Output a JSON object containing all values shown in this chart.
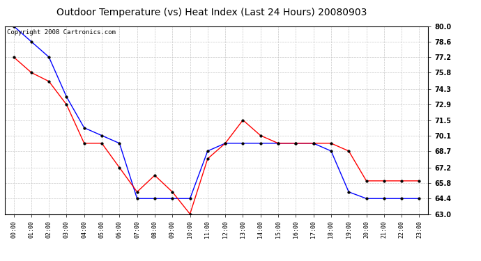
{
  "title": "Outdoor Temperature (vs) Heat Index (Last 24 Hours) 20080903",
  "copyright_text": "Copyright 2008 Cartronics.com",
  "x_labels": [
    "00:00",
    "01:00",
    "02:00",
    "03:00",
    "04:00",
    "05:00",
    "06:00",
    "07:00",
    "08:00",
    "09:00",
    "10:00",
    "11:00",
    "12:00",
    "13:00",
    "14:00",
    "15:00",
    "16:00",
    "17:00",
    "18:00",
    "19:00",
    "20:00",
    "21:00",
    "22:00",
    "23:00"
  ],
  "blue_data": [
    80.0,
    78.6,
    77.2,
    73.6,
    70.8,
    70.1,
    69.4,
    64.4,
    64.4,
    64.4,
    64.4,
    68.7,
    69.4,
    69.4,
    69.4,
    69.4,
    69.4,
    69.4,
    68.7,
    65.0,
    64.4,
    64.4,
    64.4,
    64.4
  ],
  "red_data": [
    77.2,
    75.8,
    75.0,
    72.9,
    69.4,
    69.4,
    67.2,
    65.0,
    66.5,
    65.0,
    63.0,
    68.0,
    69.4,
    71.5,
    70.1,
    69.4,
    69.4,
    69.4,
    69.4,
    68.7,
    66.0,
    66.0,
    66.0,
    66.0
  ],
  "y_ticks": [
    63.0,
    64.4,
    65.8,
    67.2,
    68.7,
    70.1,
    71.5,
    72.9,
    74.3,
    75.8,
    77.2,
    78.6,
    80.0
  ],
  "y_min": 63.0,
  "y_max": 80.0,
  "blue_color": "#0000FF",
  "red_color": "#FF0000",
  "bg_color": "#FFFFFF",
  "grid_color": "#C8C8C8",
  "title_fontsize": 10,
  "copyright_fontsize": 6.5
}
